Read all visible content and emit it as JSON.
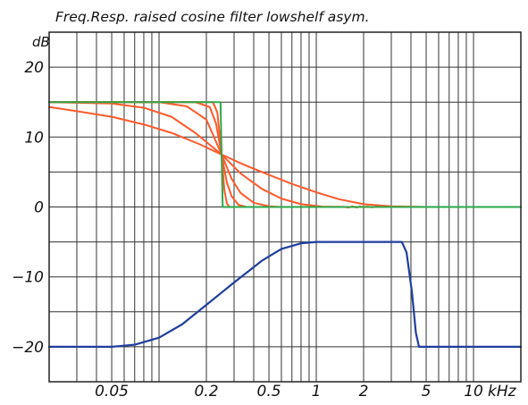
{
  "chart_data": {
    "type": "line",
    "title": "Freq.Resp. raised cosine filter lowshelf asym.",
    "ylabel": "dB",
    "xlabel": "",
    "x_unit": "kHz",
    "x_scale": "log",
    "xlim_khz": [
      0.02,
      20
    ],
    "ylim": [
      -25,
      25
    ],
    "grid": true,
    "y_ticks": [
      {
        "value": 20,
        "label": "20"
      },
      {
        "value": 10,
        "label": "10"
      },
      {
        "value": 0,
        "label": "0"
      },
      {
        "value": -10,
        "label": "−10"
      },
      {
        "value": -20,
        "label": "−20"
      }
    ],
    "x_tick_labels": [
      {
        "value": 0.05,
        "label": "0.05"
      },
      {
        "value": 0.2,
        "label": "0.2"
      },
      {
        "value": 0.5,
        "label": "0.5"
      },
      {
        "value": 1,
        "label": "1"
      },
      {
        "value": 2,
        "label": "2"
      },
      {
        "value": 5,
        "label": "5"
      },
      {
        "value": 10,
        "label": "10"
      }
    ],
    "x_unit_label": "kHz",
    "colors": {
      "frame": "#222222",
      "grid": "#333333",
      "red_series": "#ff5a2a",
      "green_series": "#2aa84a",
      "blue_series": "#1f3f9e"
    },
    "series": [
      {
        "color": "red",
        "points": [
          [
            0.02,
            14.3
          ],
          [
            0.03,
            13.7
          ],
          [
            0.05,
            12.9
          ],
          [
            0.08,
            11.8
          ],
          [
            0.12,
            10.6
          ],
          [
            0.18,
            9.0
          ],
          [
            0.25,
            7.5
          ],
          [
            0.35,
            6.0
          ],
          [
            0.5,
            4.6
          ],
          [
            0.7,
            3.3
          ],
          [
            1.0,
            2.1
          ],
          [
            1.4,
            1.1
          ],
          [
            2.0,
            0.4
          ],
          [
            3.0,
            0.1
          ],
          [
            5.0,
            0.0
          ],
          [
            20,
            0.0
          ]
        ]
      },
      {
        "color": "red",
        "points": [
          [
            0.02,
            15.0
          ],
          [
            0.05,
            14.8
          ],
          [
            0.08,
            14.2
          ],
          [
            0.12,
            12.9
          ],
          [
            0.17,
            10.6
          ],
          [
            0.25,
            7.5
          ],
          [
            0.33,
            4.8
          ],
          [
            0.45,
            2.6
          ],
          [
            0.6,
            1.2
          ],
          [
            0.8,
            0.4
          ],
          [
            1.1,
            0.05
          ],
          [
            1.5,
            0.0
          ],
          [
            20,
            0.0
          ]
        ]
      },
      {
        "color": "red",
        "points": [
          [
            0.02,
            15.0
          ],
          [
            0.1,
            15.0
          ],
          [
            0.15,
            14.4
          ],
          [
            0.2,
            12.5
          ],
          [
            0.25,
            7.5
          ],
          [
            0.29,
            4.0
          ],
          [
            0.33,
            2.0
          ],
          [
            0.4,
            0.6
          ],
          [
            0.5,
            0.1
          ],
          [
            0.6,
            0.0
          ],
          [
            1.5,
            0.02
          ],
          [
            1.6,
            -0.08
          ],
          [
            1.7,
            0.08
          ],
          [
            1.8,
            -0.08
          ],
          [
            1.9,
            0.08
          ],
          [
            2.0,
            -0.06
          ],
          [
            2.1,
            0.06
          ],
          [
            2.25,
            -0.05
          ],
          [
            2.4,
            0.04
          ],
          [
            2.6,
            0.0
          ],
          [
            20,
            0.0
          ]
        ]
      },
      {
        "color": "red",
        "points": [
          [
            0.02,
            15.0
          ],
          [
            0.17,
            15.0
          ],
          [
            0.21,
            14.3
          ],
          [
            0.23,
            12.0
          ],
          [
            0.25,
            7.5
          ],
          [
            0.27,
            3.5
          ],
          [
            0.29,
            1.5
          ],
          [
            0.32,
            0.3
          ],
          [
            0.36,
            0.0
          ],
          [
            20,
            0.0
          ]
        ]
      },
      {
        "color": "red",
        "points": [
          [
            0.02,
            15.0
          ],
          [
            0.22,
            15.0
          ],
          [
            0.235,
            13.5
          ],
          [
            0.25,
            7.5
          ],
          [
            0.26,
            2.5
          ],
          [
            0.27,
            0.5
          ],
          [
            0.28,
            0.0
          ],
          [
            20,
            0.0
          ]
        ]
      },
      {
        "color": "green",
        "points": [
          [
            0.02,
            15.0
          ],
          [
            0.246,
            15.0
          ],
          [
            0.254,
            0.0
          ],
          [
            20,
            0.0
          ]
        ]
      },
      {
        "color": "blue",
        "points": [
          [
            0.02,
            -20
          ],
          [
            0.05,
            -20
          ],
          [
            0.07,
            -19.7
          ],
          [
            0.1,
            -18.7
          ],
          [
            0.14,
            -16.8
          ],
          [
            0.2,
            -14.0
          ],
          [
            0.3,
            -10.8
          ],
          [
            0.45,
            -7.7
          ],
          [
            0.6,
            -6.0
          ],
          [
            0.8,
            -5.2
          ],
          [
            1.0,
            -5.0
          ],
          [
            3.5,
            -5.0
          ],
          [
            3.75,
            -6.5
          ],
          [
            4.05,
            -12.0
          ],
          [
            4.3,
            -18.0
          ],
          [
            4.5,
            -20.0
          ],
          [
            20,
            -20
          ]
        ]
      }
    ]
  }
}
